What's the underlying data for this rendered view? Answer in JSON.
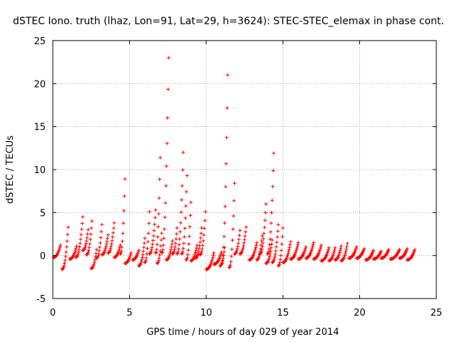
{
  "chart_data": {
    "type": "scatter",
    "title": "dSTEC Iono. truth (lhaz, Lon=91, Lat=29, h=3624): STEC-STEC_elemax in phase cont.",
    "xlabel": "GPS time / hours of day 029 of year 2014",
    "ylabel": "dSTEC  / TECUs",
    "xlim": [
      0,
      25
    ],
    "ylim": [
      -5,
      25
    ],
    "xticks": [
      "0",
      "5",
      "10",
      "15",
      "20",
      "25"
    ],
    "yticks": [
      "-5",
      "0",
      "5",
      "10",
      "15",
      "20",
      "25"
    ],
    "grid": true,
    "marker": "+",
    "color": "#ff0000",
    "arcs": [
      {
        "t0": 0.05,
        "t1": 0.5,
        "start": -0.2,
        "end": 1.2
      },
      {
        "t0": 0.6,
        "t1": 1.0,
        "start": -1.6,
        "end": 3.3
      },
      {
        "t0": 1.1,
        "t1": 1.55,
        "start": -0.4,
        "end": 1.1
      },
      {
        "t0": 1.5,
        "t1": 1.95,
        "start": -0.2,
        "end": 4.5
      },
      {
        "t0": 1.95,
        "t1": 2.3,
        "start": 0.6,
        "end": 3.0
      },
      {
        "t0": 2.2,
        "t1": 2.55,
        "start": 0.1,
        "end": 4.0
      },
      {
        "t0": 2.5,
        "t1": 2.85,
        "start": -1.5,
        "end": 0.7
      },
      {
        "t0": 2.85,
        "t1": 3.2,
        "start": -0.3,
        "end": 3.6
      },
      {
        "t0": 3.2,
        "t1": 3.6,
        "start": 0.1,
        "end": 2.4
      },
      {
        "t0": 3.6,
        "t1": 4.0,
        "start": 0.3,
        "end": 3.8
      },
      {
        "t0": 4.0,
        "t1": 4.4,
        "start": -0.2,
        "end": 1.2
      },
      {
        "t0": 4.4,
        "t1": 4.7,
        "start": 0.2,
        "end": 8.9
      },
      {
        "t0": 4.7,
        "t1": 5.1,
        "start": -0.9,
        "end": 0.3
      },
      {
        "t0": 5.2,
        "t1": 5.6,
        "start": -0.5,
        "end": 0.6
      },
      {
        "t0": 5.6,
        "t1": 6.0,
        "start": -1.2,
        "end": 2.0
      },
      {
        "t0": 6.0,
        "t1": 6.3,
        "start": -0.8,
        "end": 5.1
      },
      {
        "t0": 6.3,
        "t1": 6.7,
        "start": 0.2,
        "end": 5.3
      },
      {
        "t0": 6.7,
        "t1": 7.0,
        "start": 0.3,
        "end": 11.4
      },
      {
        "t0": 6.8,
        "t1": 7.1,
        "start": -0.9,
        "end": 2.6
      },
      {
        "t0": 7.1,
        "t1": 7.55,
        "start": 0.3,
        "end": 23.0
      },
      {
        "t0": 7.4,
        "t1": 7.8,
        "start": -0.5,
        "end": 1.7
      },
      {
        "t0": 7.8,
        "t1": 8.1,
        "start": 0.2,
        "end": 3.2
      },
      {
        "t0": 8.1,
        "t1": 8.5,
        "start": 0.2,
        "end": 12.0
      },
      {
        "t0": 8.4,
        "t1": 8.75,
        "start": 0.2,
        "end": 9.3
      },
      {
        "t0": 8.7,
        "t1": 9.0,
        "start": -0.5,
        "end": 6.2
      },
      {
        "t0": 9.0,
        "t1": 9.4,
        "start": -0.6,
        "end": 1.2
      },
      {
        "t0": 9.3,
        "t1": 9.7,
        "start": -0.3,
        "end": 3.2
      },
      {
        "t0": 9.6,
        "t1": 9.95,
        "start": 0.1,
        "end": 5.1
      },
      {
        "t0": 10.0,
        "t1": 10.5,
        "start": -1.6,
        "end": 0.3
      },
      {
        "t0": 10.5,
        "t1": 11.0,
        "start": -1.0,
        "end": 0.4
      },
      {
        "t0": 10.9,
        "t1": 11.2,
        "start": -1.2,
        "end": 0.9
      },
      {
        "t0": 11.0,
        "t1": 11.4,
        "start": -1.0,
        "end": 21.0
      },
      {
        "t0": 11.5,
        "t1": 11.85,
        "start": -1.4,
        "end": 8.4
      },
      {
        "t0": 11.85,
        "t1": 12.2,
        "start": 0.2,
        "end": 2.9
      },
      {
        "t0": 12.2,
        "t1": 12.6,
        "start": 0.2,
        "end": 3.3
      },
      {
        "t0": 12.8,
        "t1": 13.3,
        "start": -0.5,
        "end": 1.5
      },
      {
        "t0": 13.3,
        "t1": 13.65,
        "start": -0.5,
        "end": 2.3
      },
      {
        "t0": 13.5,
        "t1": 13.9,
        "start": 0.2,
        "end": 6.0
      },
      {
        "t0": 13.9,
        "t1": 14.3,
        "start": -0.9,
        "end": 1.8
      },
      {
        "t0": 14.0,
        "t1": 14.4,
        "start": 0.2,
        "end": 11.9
      },
      {
        "t0": 14.3,
        "t1": 14.7,
        "start": -0.8,
        "end": 3.6
      },
      {
        "t0": 14.7,
        "t1": 15.0,
        "start": -1.2,
        "end": 3.2
      },
      {
        "t0": 15.0,
        "t1": 15.5,
        "start": -0.8,
        "end": 1.6
      },
      {
        "t0": 15.5,
        "t1": 16.0,
        "start": -0.4,
        "end": 1.5
      },
      {
        "t0": 16.0,
        "t1": 16.5,
        "start": -0.4,
        "end": 1.0
      },
      {
        "t0": 16.5,
        "t1": 17.0,
        "start": -0.3,
        "end": 1.5
      },
      {
        "t0": 17.0,
        "t1": 17.5,
        "start": -0.4,
        "end": 1.2
      },
      {
        "t0": 17.5,
        "t1": 18.0,
        "start": -0.6,
        "end": 0.9
      },
      {
        "t0": 18.0,
        "t1": 18.4,
        "start": -0.6,
        "end": 0.9
      },
      {
        "t0": 18.4,
        "t1": 18.8,
        "start": -0.5,
        "end": 1.1
      },
      {
        "t0": 18.8,
        "t1": 19.2,
        "start": -0.6,
        "end": 1.4
      },
      {
        "t0": 19.3,
        "t1": 19.8,
        "start": -0.3,
        "end": 1.0
      },
      {
        "t0": 19.8,
        "t1": 20.3,
        "start": -0.3,
        "end": 0.8
      },
      {
        "t0": 20.4,
        "t1": 20.9,
        "start": -0.5,
        "end": 0.6
      },
      {
        "t0": 20.9,
        "t1": 21.4,
        "start": -0.4,
        "end": 0.5
      },
      {
        "t0": 21.4,
        "t1": 21.9,
        "start": -0.3,
        "end": 0.7
      },
      {
        "t0": 22.0,
        "t1": 22.6,
        "start": -0.4,
        "end": 0.7
      },
      {
        "t0": 22.6,
        "t1": 23.1,
        "start": -0.3,
        "end": 0.8
      },
      {
        "t0": 23.1,
        "t1": 23.6,
        "start": -0.5,
        "end": 0.7
      }
    ]
  }
}
